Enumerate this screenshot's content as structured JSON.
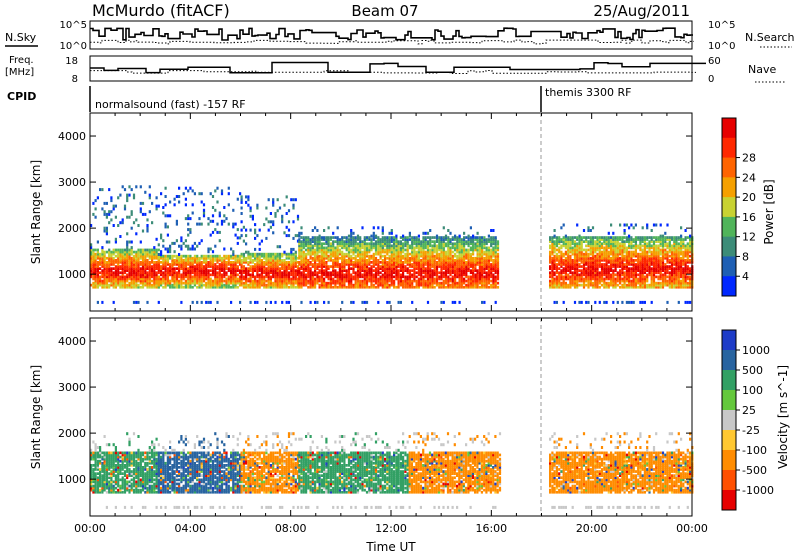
{
  "header": {
    "station": "McMurdo (fitACF)",
    "beam": "Beam 07",
    "date": "25/Aug/2011"
  },
  "top_panels": {
    "nsky_label": "N.Sky",
    "nsky_ticks": [
      "10^5",
      "10^0"
    ],
    "nsearch_label": "N.Search",
    "nsearch_ticks": [
      "10^5",
      "10^0"
    ],
    "freq_label_1": "Freq.",
    "freq_label_2": "[MHz]",
    "freq_ticks": [
      "18",
      "8"
    ],
    "nave_label": "Nave",
    "nave_ticks": [
      "60",
      "0"
    ],
    "cpid_label": "CPID",
    "cpid_segments": [
      {
        "label": "normalsound (fast) -157 RF",
        "start_h": 0
      },
      {
        "label": "themis 3300 RF",
        "start_h": 18
      }
    ]
  },
  "chart_data": [
    {
      "type": "heatmap",
      "panel": "power",
      "ylabel": "Slant Range [km]",
      "xlabel": "",
      "ylim": [
        200,
        4500
      ],
      "yticks": [
        "1000",
        "2000",
        "3000",
        "4000"
      ],
      "xlim": [
        0,
        24
      ],
      "colorbar_label": "Power [dB]",
      "colorbar_ticks": [
        "4",
        "8",
        "12",
        "16",
        "20",
        "24",
        "28"
      ],
      "colors": [
        "#0028ff",
        "#1e5fb4",
        "#3c8c78",
        "#50b45a",
        "#c8d232",
        "#f5a000",
        "#ff6400",
        "#ff2800",
        "#e60000"
      ],
      "segments": [
        {
          "t0": 0.0,
          "t1": 2.7,
          "peak_km": 1050,
          "strong_top": 1550,
          "weak_top": 2900
        },
        {
          "t0": 2.7,
          "t1": 6.0,
          "peak_km": 1050,
          "strong_top": 1400,
          "weak_top": 2900
        },
        {
          "t0": 6.0,
          "t1": 8.3,
          "peak_km": 1000,
          "strong_top": 1450,
          "weak_top": 2700
        },
        {
          "t0": 8.3,
          "t1": 16.3,
          "peak_km": 1000,
          "strong_top": 1800,
          "weak_top": 2000
        },
        {
          "t0": 18.3,
          "t1": 24.0,
          "peak_km": 1100,
          "strong_top": 1800,
          "weak_top": 2100
        }
      ]
    },
    {
      "type": "heatmap",
      "panel": "velocity",
      "ylabel": "Slant Range [km]",
      "xlabel": "Time UT",
      "ylim": [
        200,
        4500
      ],
      "yticks": [
        "1000",
        "2000",
        "3000",
        "4000"
      ],
      "xlim": [
        0,
        24
      ],
      "xticks": [
        "00:00",
        "04:00",
        "08:00",
        "12:00",
        "16:00",
        "20:00",
        "00:00"
      ],
      "colorbar_label": "Velocity [m s^-1]",
      "colorbar_ticks": [
        "1000",
        "500",
        "100",
        "25",
        "-25",
        "-100",
        "-500",
        "-1000"
      ],
      "colors": [
        "#1e3cc8",
        "#2864a0",
        "#32a064",
        "#64c83c",
        "#c8c8c8",
        "#ffc832",
        "#ff8c00",
        "#ff5000",
        "#e60000"
      ],
      "segments": [
        {
          "t0": 0.0,
          "t1": 2.7,
          "main_color": "#32a064"
        },
        {
          "t0": 2.7,
          "t1": 6.0,
          "main_color": "#2864a0"
        },
        {
          "t0": 6.0,
          "t1": 8.3,
          "main_color": "#ff8c00"
        },
        {
          "t0": 8.3,
          "t1": 12.7,
          "main_color": "#32a064"
        },
        {
          "t0": 12.7,
          "t1": 16.3,
          "main_color": "#ff8c00"
        },
        {
          "t0": 18.3,
          "t1": 24.0,
          "main_color": "#ff8c00"
        }
      ]
    }
  ]
}
